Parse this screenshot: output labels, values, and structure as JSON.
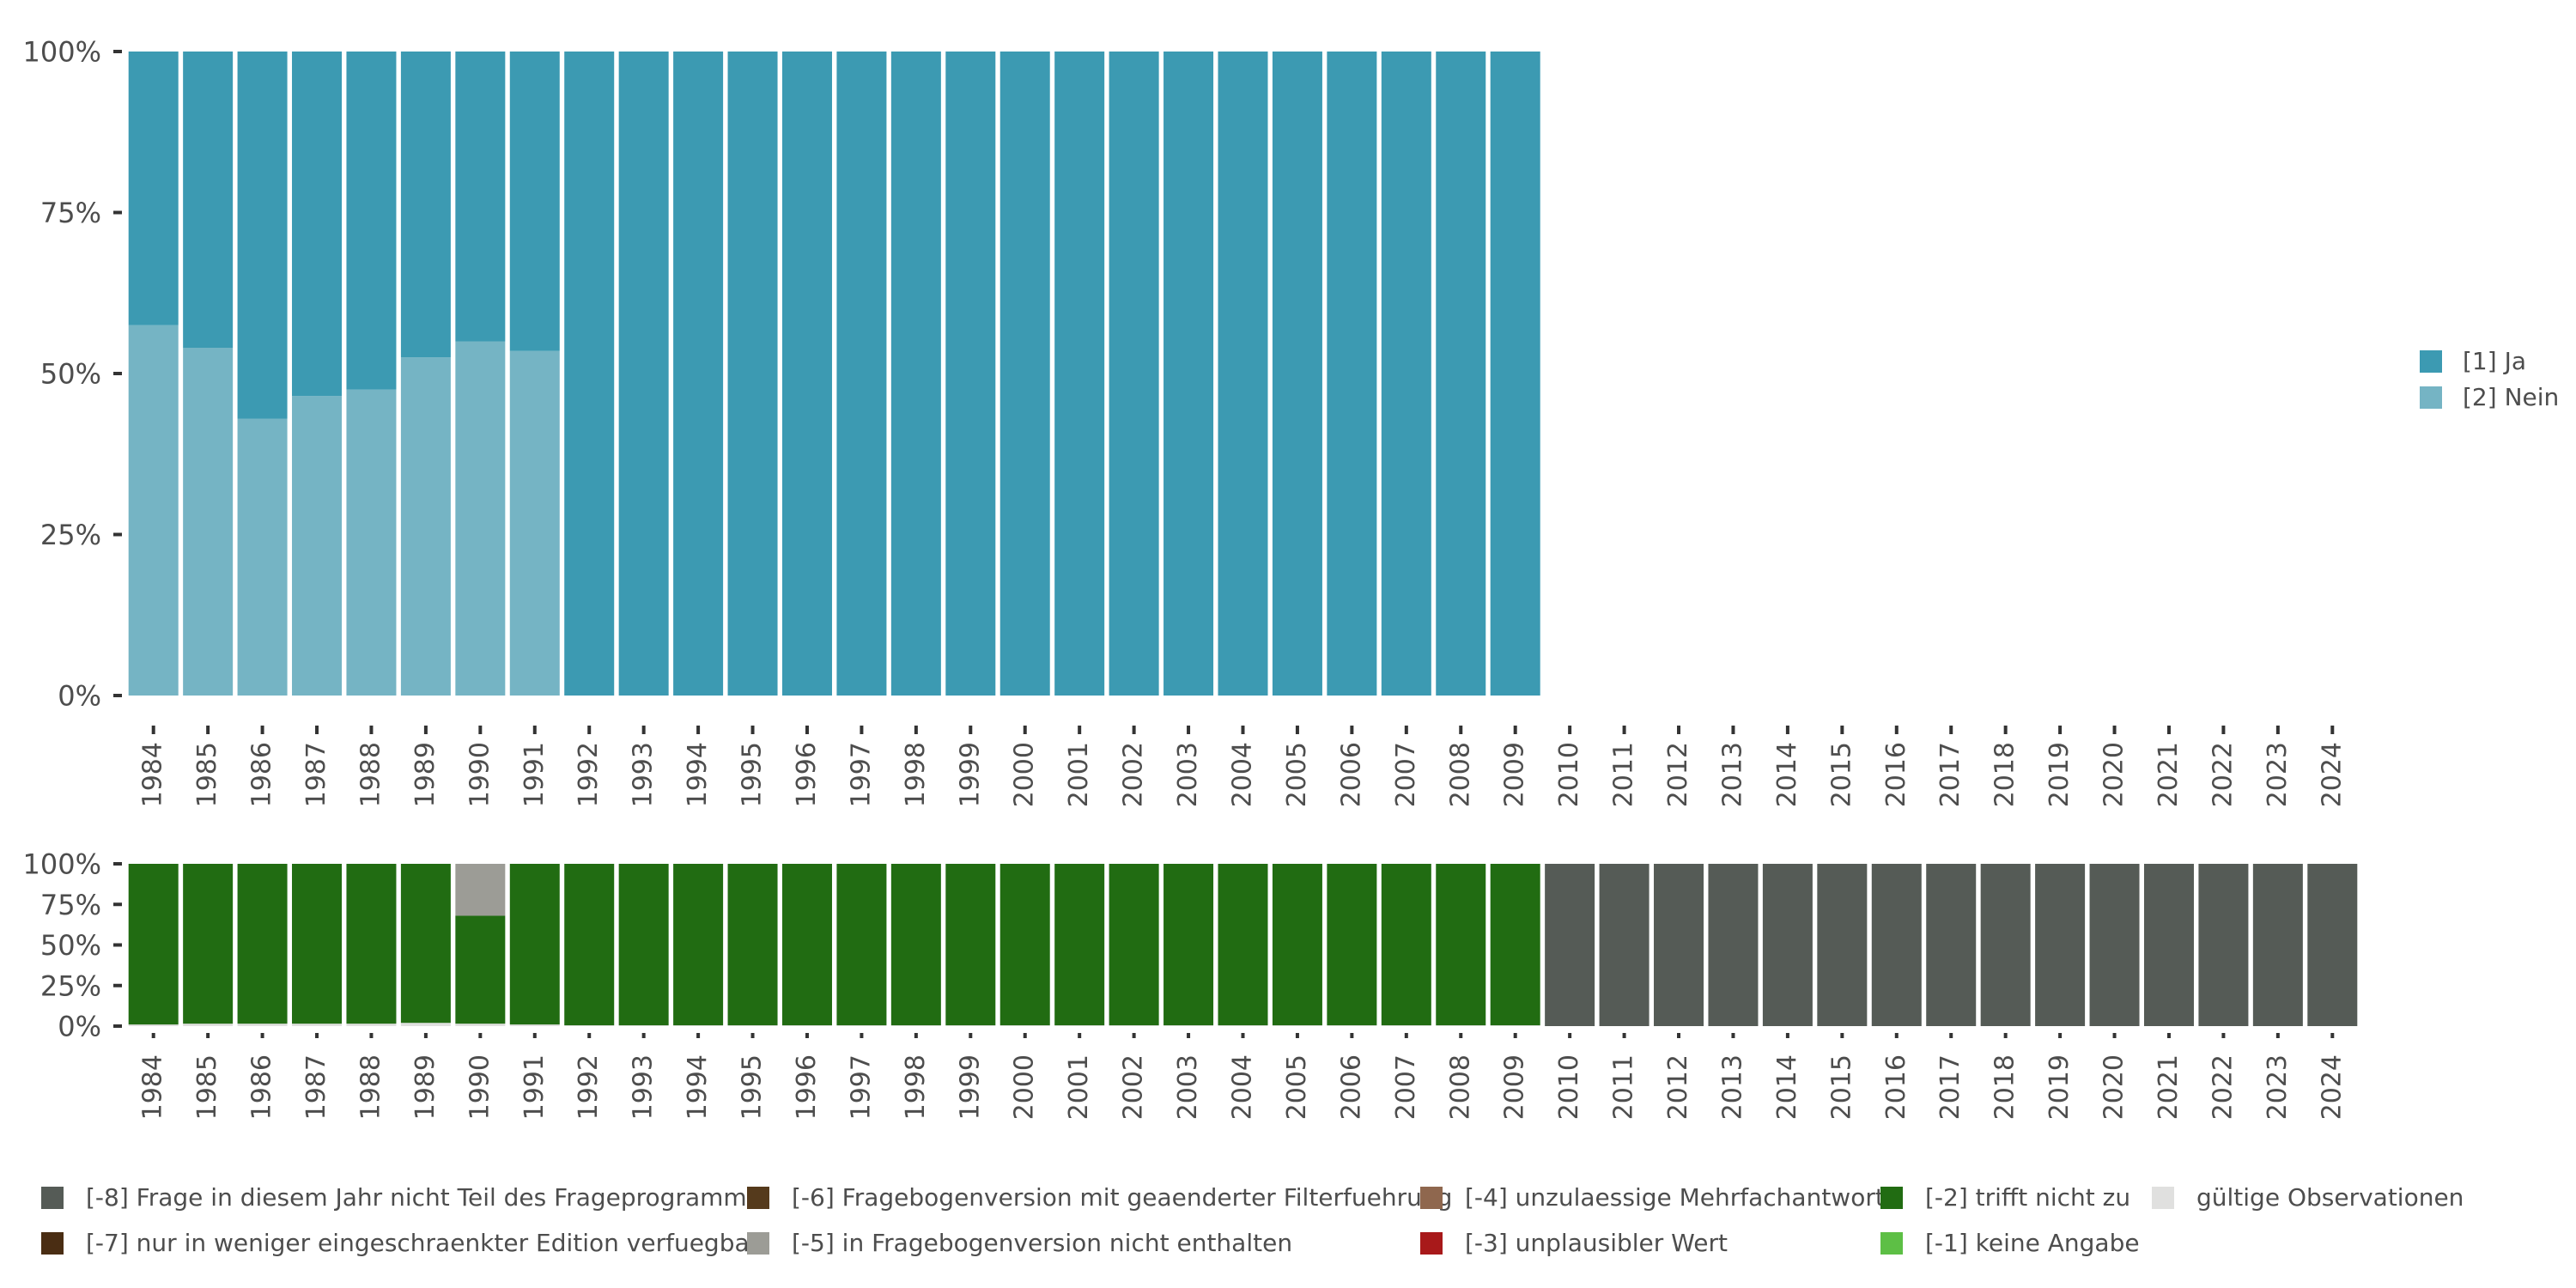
{
  "chart_data": [
    {
      "type": "bar",
      "stacked": true,
      "categories": [
        "1984",
        "1985",
        "1986",
        "1987",
        "1988",
        "1989",
        "1990",
        "1991",
        "1992",
        "1993",
        "1994",
        "1995",
        "1996",
        "1997",
        "1998",
        "1999",
        "2000",
        "2001",
        "2002",
        "2003",
        "2004",
        "2005",
        "2006",
        "2007",
        "2008",
        "2009",
        "2010",
        "2011",
        "2012",
        "2013",
        "2014",
        "2015",
        "2016",
        "2017",
        "2018",
        "2019",
        "2020",
        "2021",
        "2022",
        "2023",
        "2024"
      ],
      "ylim": [
        0,
        100
      ],
      "y_ticks": [
        "0%",
        "25%",
        "50%",
        "75%",
        "100%"
      ],
      "series": [
        {
          "name": "[2] Nein",
          "color": "#75b4c4",
          "values": [
            57.5,
            54,
            43,
            46.5,
            47.5,
            52.5,
            55,
            53.5,
            0,
            0,
            0,
            0,
            0,
            0,
            0,
            0,
            0,
            0,
            0,
            0,
            0,
            0,
            0,
            0,
            0,
            0,
            null,
            null,
            null,
            null,
            null,
            null,
            null,
            null,
            null,
            null,
            null,
            null,
            null,
            null,
            null
          ]
        },
        {
          "name": "[1] Ja",
          "color": "#3c9ab2",
          "values": [
            42.5,
            46,
            57,
            53.5,
            52.5,
            47.5,
            45,
            46.5,
            100,
            100,
            100,
            100,
            100,
            100,
            100,
            100,
            100,
            100,
            100,
            100,
            100,
            100,
            100,
            100,
            100,
            100,
            null,
            null,
            null,
            null,
            null,
            null,
            null,
            null,
            null,
            null,
            null,
            null,
            null,
            null,
            null
          ]
        }
      ],
      "legend_position": "right"
    },
    {
      "type": "bar",
      "stacked": true,
      "categories": [
        "1984",
        "1985",
        "1986",
        "1987",
        "1988",
        "1989",
        "1990",
        "1991",
        "1992",
        "1993",
        "1994",
        "1995",
        "1996",
        "1997",
        "1998",
        "1999",
        "2000",
        "2001",
        "2002",
        "2003",
        "2004",
        "2005",
        "2006",
        "2007",
        "2008",
        "2009",
        "2010",
        "2011",
        "2012",
        "2013",
        "2014",
        "2015",
        "2016",
        "2017",
        "2018",
        "2019",
        "2020",
        "2021",
        "2022",
        "2023",
        "2024"
      ],
      "ylim": [
        0,
        100
      ],
      "y_ticks": [
        "0%",
        "25%",
        "50%",
        "75%",
        "100%"
      ],
      "series": [
        {
          "name": "gültige Observationen",
          "color": "#e0e0df",
          "values": [
            1,
            1.5,
            1.5,
            1.5,
            1.5,
            2,
            1.5,
            1,
            0.5,
            0.5,
            0.5,
            0.5,
            0.5,
            0.5,
            0.5,
            0.5,
            0.5,
            0.5,
            0.5,
            0.5,
            0.5,
            0.5,
            0.5,
            0.5,
            0.5,
            0.5,
            0,
            0,
            0,
            0,
            0,
            0,
            0,
            0,
            0,
            0,
            0,
            0,
            0,
            0,
            0
          ]
        },
        {
          "name": "[-2] trifft nicht zu",
          "color": "#216c12",
          "values": [
            99,
            98.5,
            98.5,
            98.5,
            98.5,
            98,
            66.5,
            99,
            99.5,
            99.5,
            99.5,
            99.5,
            99.5,
            99.5,
            99.5,
            99.5,
            99.5,
            99.5,
            99.5,
            99.5,
            99.5,
            99.5,
            99.5,
            99.5,
            99.5,
            99.5,
            0,
            0,
            0,
            0,
            0,
            0,
            0,
            0,
            0,
            0,
            0,
            0,
            0,
            0,
            0
          ]
        },
        {
          "name": "[-5] in Fragebogenversion nicht enthalten",
          "color": "#9c9c96",
          "values": [
            0,
            0,
            0,
            0,
            0,
            0,
            32,
            0,
            0,
            0,
            0,
            0,
            0,
            0,
            0,
            0,
            0,
            0,
            0,
            0,
            0,
            0,
            0,
            0,
            0,
            0,
            0,
            0,
            0,
            0,
            0,
            0,
            0,
            0,
            0,
            0,
            0,
            0,
            0,
            0,
            0
          ]
        },
        {
          "name": "[-8] Frage in diesem Jahr nicht Teil des Frageprogramms",
          "color": "#555b56",
          "values": [
            0,
            0,
            0,
            0,
            0,
            0,
            0,
            0,
            0,
            0,
            0,
            0,
            0,
            0,
            0,
            0,
            0,
            0,
            0,
            0,
            0,
            0,
            0,
            0,
            0,
            0,
            100,
            100,
            100,
            100,
            100,
            100,
            100,
            100,
            100,
            100,
            100,
            100,
            100,
            100,
            100
          ]
        }
      ],
      "legend": [
        {
          "name": "[-8] Frage in diesem Jahr nicht Teil des Frageprogramms",
          "color": "#555b56"
        },
        {
          "name": "[-7] nur in weniger eingeschraenkter Edition verfuegbar",
          "color": "#4a2d13"
        },
        {
          "name": "[-6] Fragebogenversion mit geaenderter Filterfuehrung",
          "color": "#553a1c"
        },
        {
          "name": "[-5] in Fragebogenversion nicht enthalten",
          "color": "#9c9c96"
        },
        {
          "name": "[-4] unzulaessige Mehrfachantwort",
          "color": "#8f674e"
        },
        {
          "name": "[-3] unplausibler Wert",
          "color": "#a8191a"
        },
        {
          "name": "[-2] trifft nicht zu",
          "color": "#216c12"
        },
        {
          "name": "[-1] keine Angabe",
          "color": "#5dbf45"
        },
        {
          "name": "gültige Observationen",
          "color": "#e0e0df"
        }
      ],
      "legend_position": "bottom"
    }
  ]
}
